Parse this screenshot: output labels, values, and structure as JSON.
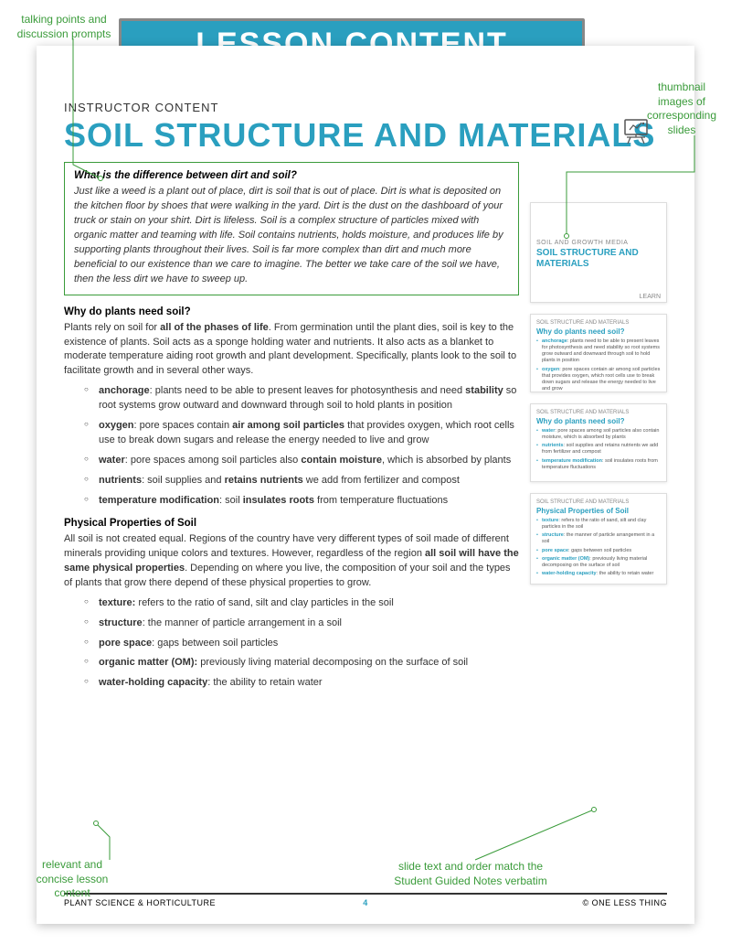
{
  "annotations": {
    "top_left": "talking points and\ndiscussion prompts",
    "top_right": "thumbnail\nimages of\ncorresponding\nslides",
    "bottom_left": "relevant and\nconcise lesson\ncontent",
    "bottom_right": "slide text and order match the\nStudent Guided Notes verbatim"
  },
  "banner": "LESSON CONTENT",
  "instructor_label": "INSTRUCTOR CONTENT",
  "page_title": "SOIL STRUCTURE AND MATERIALS",
  "intro": {
    "question": "What is the difference between dirt and soil?",
    "body": "Just like a weed is a plant out of place, dirt is soil that is out of place. Dirt is what is deposited on the kitchen floor by shoes that were walking in the yard. Dirt is the dust on the dashboard of your truck or stain on your shirt. Dirt is lifeless. Soil is a complex structure of particles mixed with organic matter and teaming with life. Soil contains nutrients, holds moisture, and produces life by supporting plants throughout their lives. Soil is far more complex than dirt and much more beneficial to our existence than we care to imagine. The better we take care of the soil we have, then the less dirt we have to sweep up."
  },
  "section1": {
    "heading": "Why do plants need soil?",
    "p_pre": "Plants rely on soil for ",
    "p_bold": "all of the phases of life",
    "p_post": ". From germination until the plant dies, soil is key to the existence of plants. Soil acts as a sponge holding water and nutrients. It also acts as a blanket to moderate temperature aiding root growth and plant development. Specifically, plants look to the soil to facilitate growth and in several other ways.",
    "items": [
      {
        "k": "anchorage",
        "t_pre": ": plants need to be able to present leaves for photosynthesis and need ",
        "t_bold": "stability",
        "t_post": " so root systems grow outward and downward through soil to hold plants in position"
      },
      {
        "k": "oxygen",
        "t_pre": ": pore spaces contain ",
        "t_bold": "air among soil particles",
        "t_post": " that provides oxygen, which root cells use to break down sugars and release the energy needed to live and grow"
      },
      {
        "k": "water",
        "t_pre": ": pore spaces among soil particles also ",
        "t_bold": "contain moisture",
        "t_post": ", which is absorbed by plants"
      },
      {
        "k": "nutrients",
        "t_pre": ": soil supplies and ",
        "t_bold": "retains nutrients",
        "t_post": " we add from fertilizer and compost"
      },
      {
        "k": "temperature modification",
        "t_pre": ": soil ",
        "t_bold": "insulates roots",
        "t_post": " from temperature fluctuations"
      }
    ]
  },
  "section2": {
    "heading": "Physical Properties of Soil",
    "p_pre": "All soil is not created equal. Regions of the country have very different types of soil made of different minerals providing unique colors and textures. However, regardless of the region ",
    "p_bold": "all soil will have the same physical properties",
    "p_post": ". Depending on where you live, the composition of your soil and the types of plants that grow there depend of these physical properties to grow.",
    "items": [
      {
        "k": "texture:",
        "t": " refers to the ratio of sand, silt and clay particles in the soil"
      },
      {
        "k": "structure",
        "t": ": the manner of particle arrangement in a soil"
      },
      {
        "k": "pore space",
        "t": ": gaps between soil particles"
      },
      {
        "k": "organic matter (OM):",
        "t": " previously living material decomposing on the surface of soil"
      },
      {
        "k": "water-holding capacity",
        "t": ": the ability to retain water"
      }
    ]
  },
  "thumbs": {
    "t1": {
      "sub": "SOIL AND GROWTH MEDIA",
      "title": "SOIL STRUCTURE AND MATERIALS",
      "learn": "LEARN"
    },
    "t2": {
      "crumb": "SOIL STRUCTURE AND MATERIALS",
      "h": "Why do plants need soil?",
      "items": [
        {
          "k": "anchorage",
          "t": ": plants need to be able to present leaves for photosynthesis and need stability so root systems grow outward and downward through soil to hold plants in position"
        },
        {
          "k": "oxygen",
          "t": ": pore spaces contain air among soil particles that provides oxygen, which root cells use to break down sugars and release the energy needed to live and grow"
        }
      ]
    },
    "t3": {
      "crumb": "SOIL STRUCTURE AND MATERIALS",
      "h": "Why do plants need soil?",
      "items": [
        {
          "k": "water",
          "t": ": pore spaces among soil particles also contain moisture, which is absorbed by plants"
        },
        {
          "k": "nutrients",
          "t": ": soil supplies and retains nutrients we add from fertilizer and compost"
        },
        {
          "k": "temperature modification",
          "t": ": soil insulates roots from temperature fluctuations"
        }
      ]
    },
    "t4": {
      "crumb": "SOIL STRUCTURE AND MATERIALS",
      "h": "Physical Properties of Soil",
      "items": [
        {
          "k": "texture",
          "t": ": refers to the ratio of sand, silt and clay particles in the soil"
        },
        {
          "k": "structure",
          "t": ": the manner of particle arrangement in a soil"
        },
        {
          "k": "pore space",
          "t": ": gaps between soil particles"
        },
        {
          "k": "organic matter (OM)",
          "t": ": previously living material decomposing on the surface of soil"
        },
        {
          "k": "water-holding capacity",
          "t": ": the ability to retain water"
        }
      ]
    }
  },
  "footer": {
    "left": "PLANT SCIENCE & HORTICULTURE",
    "page": "4",
    "right": "© ONE LESS THING"
  },
  "colors": {
    "accent": "#2a9fbf",
    "annotation": "#3a9b3a"
  }
}
